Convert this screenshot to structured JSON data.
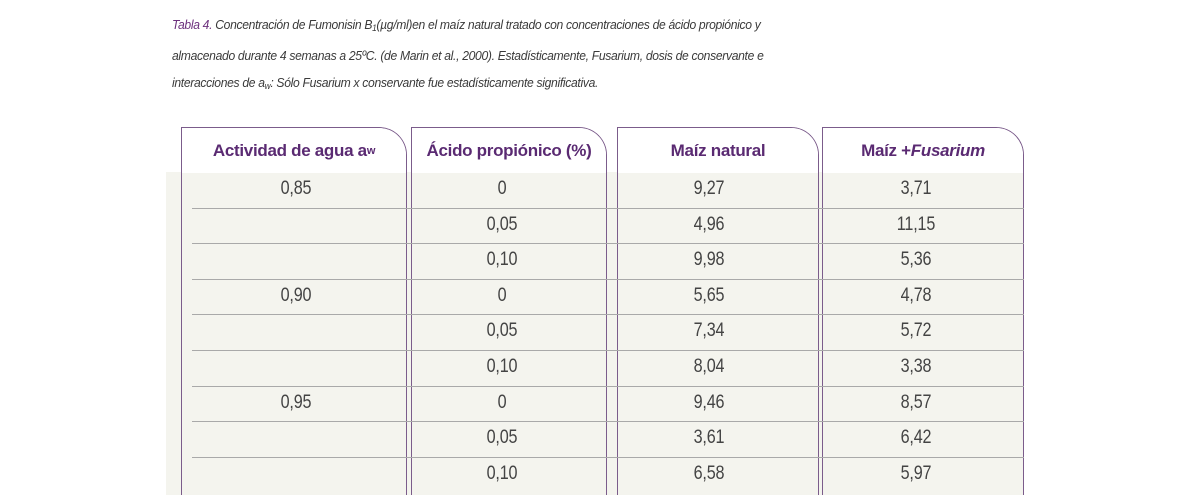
{
  "caption": {
    "label": "Tabla 4.",
    "line1_text": "Concentración de Fumonisin B",
    "line1_sub": "1",
    "line1_rest": "(µg/ml)en el maíz natural tratado con concentraciones de ácido propiónico  y",
    "line2": "almacenado durante 4 semanas a 25ºC. (de Marin et al., 2000). Estadísticamente, Fusarium, dosis de  conservante e",
    "line3_text": "interacciones de a",
    "line3_sub": "w",
    "line3_rest": ": Sólo Fusarium x conservante fue estadísticamente significativa."
  },
  "table": {
    "headers": {
      "col1_text": "Actividad de agua a",
      "col1_sub": "w",
      "col2": "Ácido propiónico (%)",
      "col3": "Maíz natural",
      "col4_pre": "Maíz + ",
      "col4_em": "Fusarium"
    },
    "rows": [
      {
        "aw": "0,85",
        "acid": "0",
        "natural": "9,27",
        "fusarium": "3,71"
      },
      {
        "aw": "",
        "acid": "0,05",
        "natural": "4,96",
        "fusarium": "11,15"
      },
      {
        "aw": "",
        "acid": "0,10",
        "natural": "9,98",
        "fusarium": "5,36"
      },
      {
        "aw": "0,90",
        "acid": "0",
        "natural": "5,65",
        "fusarium": "4,78"
      },
      {
        "aw": "",
        "acid": "0,05",
        "natural": "7,34",
        "fusarium": "5,72"
      },
      {
        "aw": "",
        "acid": "0,10",
        "natural": "8,04",
        "fusarium": "3,38"
      },
      {
        "aw": "0,95",
        "acid": "0",
        "natural": "9,46",
        "fusarium": "8,57"
      },
      {
        "aw": "",
        "acid": "0,05",
        "natural": "3,61",
        "fusarium": "6,42"
      },
      {
        "aw": "",
        "acid": "0,10",
        "natural": "6,58",
        "fusarium": "5,97"
      }
    ]
  },
  "colors": {
    "accent": "#5a2a72",
    "border": "#7b5c8b",
    "band": "#f4f4ee",
    "rule": "#a9a9a9"
  }
}
